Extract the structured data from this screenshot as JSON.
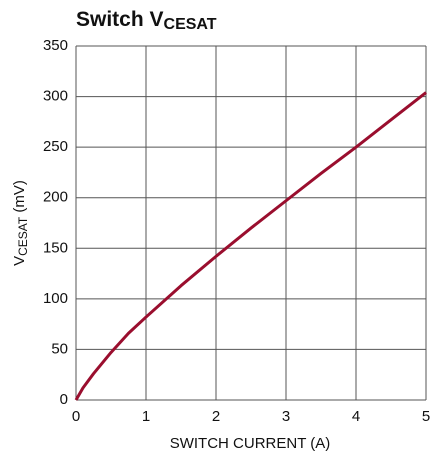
{
  "chart_data": {
    "type": "line",
    "title": [
      "Switch V",
      "CESAT"
    ],
    "x_label": "SWITCH CURRENT (A)",
    "y_label": [
      "V",
      "CESAT",
      " (mV)"
    ],
    "x": [
      0,
      0.1,
      0.25,
      0.5,
      0.75,
      1,
      1.5,
      2,
      2.5,
      3,
      3.5,
      4,
      4.5,
      5
    ],
    "series": [
      {
        "color": "#9a0e2e",
        "values": [
          0,
          12,
          26,
          47,
          66,
          82,
          113,
          142,
          170,
          197,
          224,
          250,
          277,
          304
        ]
      }
    ],
    "xlim": [
      0,
      5
    ],
    "xticks": [
      0,
      1,
      2,
      3,
      4,
      5
    ],
    "ylim": [
      0,
      350
    ],
    "yticks": [
      0,
      50,
      100,
      150,
      200,
      250,
      300,
      350
    ],
    "grid": true
  }
}
